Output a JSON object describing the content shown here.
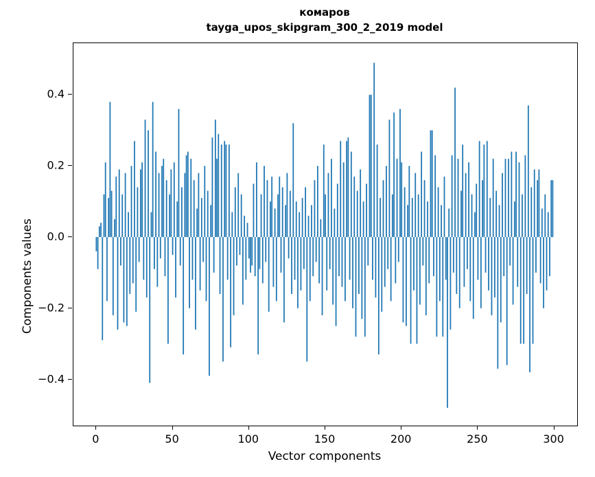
{
  "title": {
    "line1": "комаров",
    "line2": "tayga_upos_skipgram_300_2_2019 model"
  },
  "chart_data": {
    "type": "bar",
    "title": "комаров",
    "subtitle": "tayga_upos_skipgram_300_2_2019 model",
    "xlabel": "Vector components",
    "ylabel": "Components values",
    "bar_color": "#1f77b4",
    "xlim": [
      -15,
      315
    ],
    "ylim": [
      -0.53,
      0.545
    ],
    "xticks": [
      0,
      50,
      100,
      150,
      200,
      250,
      300
    ],
    "yticks": [
      -0.4,
      -0.2,
      0.0,
      0.2,
      0.4
    ],
    "x_start": 0,
    "values": [
      -0.04,
      -0.09,
      0.03,
      0.04,
      -0.29,
      0.12,
      0.21,
      -0.18,
      0.11,
      0.38,
      0.13,
      -0.22,
      0.05,
      0.17,
      -0.26,
      0.19,
      -0.08,
      0.12,
      -0.24,
      0.18,
      -0.25,
      0.07,
      -0.16,
      0.2,
      -0.13,
      0.27,
      -0.21,
      0.14,
      -0.07,
      0.19,
      0.21,
      -0.12,
      0.33,
      -0.17,
      0.3,
      -0.41,
      0.07,
      0.38,
      -0.09,
      0.24,
      -0.14,
      0.18,
      -0.06,
      0.2,
      0.22,
      -0.11,
      0.16,
      -0.3,
      0.12,
      0.19,
      -0.05,
      0.21,
      -0.17,
      0.1,
      0.36,
      -0.08,
      0.14,
      -0.33,
      0.18,
      0.23,
      0.24,
      -0.2,
      0.22,
      -0.12,
      0.16,
      -0.26,
      0.08,
      0.18,
      -0.15,
      0.11,
      -0.07,
      0.2,
      -0.18,
      0.13,
      -0.39,
      0.09,
      0.28,
      -0.1,
      0.33,
      0.22,
      0.29,
      -0.16,
      0.26,
      -0.35,
      0.27,
      0.26,
      -0.12,
      0.26,
      -0.31,
      0.07,
      -0.22,
      0.14,
      -0.08,
      0.18,
      -0.05,
      0.12,
      -0.19,
      0.06,
      -0.12,
      0.04,
      -0.06,
      -0.1,
      -0.08,
      0.15,
      -0.11,
      0.21,
      -0.33,
      -0.09,
      0.12,
      -0.13,
      0.2,
      -0.07,
      0.16,
      -0.21,
      0.1,
      0.17,
      -0.14,
      0.08,
      -0.18,
      0.12,
      0.17,
      -0.1,
      0.14,
      -0.24,
      0.09,
      0.18,
      -0.06,
      0.13,
      -0.16,
      0.32,
      -0.12,
      0.1,
      -0.2,
      0.07,
      -0.15,
      0.11,
      -0.09,
      0.14,
      -0.35,
      0.06,
      -0.18,
      0.09,
      -0.11,
      0.16,
      -0.07,
      0.2,
      -0.13,
      0.05,
      -0.22,
      0.26,
      0.12,
      -0.15,
      0.18,
      -0.09,
      0.22,
      -0.19,
      0.08,
      -0.25,
      0.15,
      -0.11,
      0.27,
      -0.14,
      0.21,
      -0.18,
      0.27,
      0.28,
      -0.12,
      0.24,
      -0.2,
      0.17,
      -0.28,
      0.13,
      -0.16,
      0.19,
      -0.23,
      0.1,
      -0.28,
      0.15,
      -0.08,
      0.4,
      0.4,
      -0.12,
      0.49,
      -0.17,
      0.26,
      -0.33,
      0.11,
      -0.21,
      0.16,
      -0.14,
      0.2,
      -0.09,
      0.33,
      -0.18,
      0.12,
      0.35,
      -0.13,
      0.22,
      -0.07,
      0.36,
      0.21,
      -0.24,
      0.14,
      -0.25,
      0.09,
      0.2,
      -0.3,
      0.11,
      -0.15,
      0.18,
      -0.3,
      0.12,
      -0.19,
      0.24,
      -0.08,
      0.16,
      -0.22,
      0.1,
      -0.13,
      0.3,
      0.3,
      -0.11,
      0.23,
      -0.28,
      0.14,
      -0.18,
      0.09,
      -0.28,
      0.17,
      -0.12,
      -0.48,
      0.08,
      -0.26,
      0.23,
      -0.1,
      0.42,
      -0.16,
      0.22,
      -0.2,
      0.13,
      0.26,
      -0.14,
      0.18,
      -0.09,
      0.21,
      -0.18,
      0.12,
      -0.23,
      0.07,
      0.15,
      -0.12,
      0.27,
      -0.2,
      0.16,
      0.26,
      -0.1,
      0.27,
      -0.15,
      0.11,
      -0.22,
      0.22,
      -0.17,
      0.13,
      -0.37,
      0.09,
      -0.24,
      0.18,
      -0.11,
      0.22,
      -0.36,
      0.22,
      -0.08,
      0.24,
      -0.19,
      0.1,
      0.24,
      -0.14,
      0.21,
      -0.3,
      0.12,
      -0.3,
      0.23,
      -0.16,
      0.37,
      -0.38,
      0.14,
      -0.3,
      0.19,
      -0.1,
      0.16,
      0.19,
      -0.13,
      0.08,
      -0.2,
      0.12,
      -0.15,
      0.07,
      -0.11,
      0.16,
      0.16
    ]
  }
}
